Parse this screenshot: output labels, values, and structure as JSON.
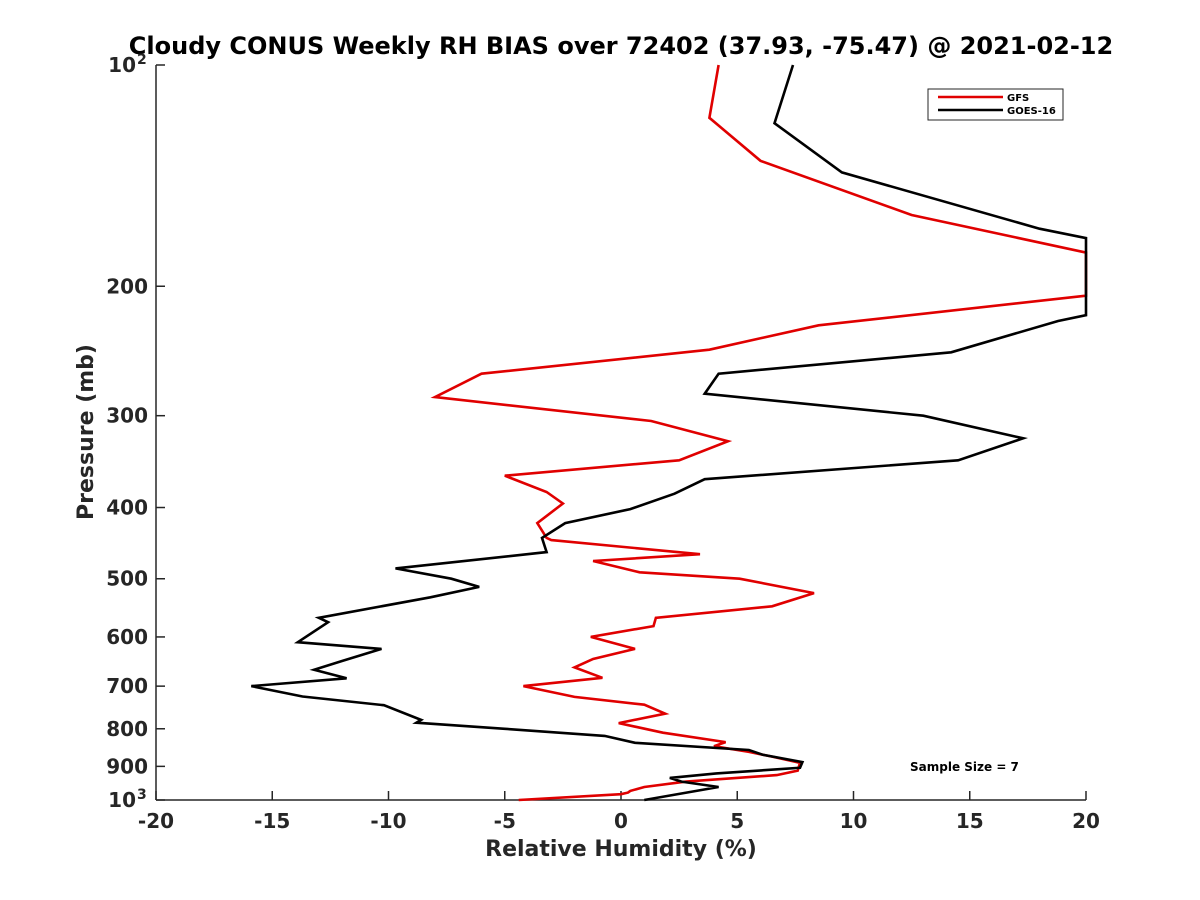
{
  "chart_data": {
    "type": "line",
    "title": "Cloudy CONUS Weekly RH BIAS over 72402 (37.93, -75.47) @ 2021-02-12",
    "xlabel": "Relative Humidity (%)",
    "ylabel": "Pressure (mb)",
    "xlim": [
      -20,
      20
    ],
    "ylim": [
      100,
      1000
    ],
    "yscale": "log",
    "y_reversed": true,
    "grid": false,
    "legend_position": "top-right",
    "x_ticks": [
      "-20",
      "-15",
      "-10",
      "-5",
      "0",
      "5",
      "10",
      "15",
      "20"
    ],
    "y_ticks": [
      {
        "value": 100,
        "label": "10",
        "sup": "2"
      },
      {
        "value": 200,
        "label": "200",
        "sup": ""
      },
      {
        "value": 300,
        "label": "300",
        "sup": ""
      },
      {
        "value": 400,
        "label": "400",
        "sup": ""
      },
      {
        "value": 500,
        "label": "500",
        "sup": ""
      },
      {
        "value": 600,
        "label": "600",
        "sup": ""
      },
      {
        "value": 700,
        "label": "700",
        "sup": ""
      },
      {
        "value": 800,
        "label": "800",
        "sup": ""
      },
      {
        "value": 900,
        "label": "900",
        "sup": ""
      },
      {
        "value": 1000,
        "label": "10",
        "sup": "3"
      }
    ],
    "annotation": "Sample Size = 7",
    "series": [
      {
        "name": "GFS",
        "color": "#e00000",
        "points": [
          [
            4.2,
            100
          ],
          [
            3.8,
            118
          ],
          [
            6.0,
            135
          ],
          [
            12.5,
            160
          ],
          [
            20.0,
            180
          ],
          [
            20.0,
            206
          ],
          [
            8.5,
            226
          ],
          [
            3.8,
            244
          ],
          [
            -6.0,
            263
          ],
          [
            -8.0,
            283
          ],
          [
            1.3,
            305
          ],
          [
            4.6,
            325
          ],
          [
            2.5,
            345
          ],
          [
            -5.0,
            362
          ],
          [
            -3.2,
            381
          ],
          [
            -2.5,
            395
          ],
          [
            -3.6,
            420
          ],
          [
            -3.2,
            440
          ],
          [
            -3.0,
            443
          ],
          [
            3.4,
            463
          ],
          [
            -1.2,
            473
          ],
          [
            0.8,
            490
          ],
          [
            5.1,
            500
          ],
          [
            8.3,
            523
          ],
          [
            6.5,
            545
          ],
          [
            1.5,
            565
          ],
          [
            1.4,
            580
          ],
          [
            -1.3,
            600
          ],
          [
            0.6,
            623
          ],
          [
            -1.2,
            643
          ],
          [
            -2.0,
            660
          ],
          [
            -0.8,
            682
          ],
          [
            -4.2,
            700
          ],
          [
            -2.0,
            724
          ],
          [
            1.0,
            742
          ],
          [
            1.9,
            763
          ],
          [
            -0.1,
            786
          ],
          [
            1.8,
            810
          ],
          [
            4.5,
            834
          ],
          [
            4.0,
            845
          ],
          [
            5.5,
            860
          ],
          [
            6.5,
            873
          ],
          [
            7.7,
            890
          ],
          [
            7.6,
            912
          ],
          [
            6.7,
            925
          ],
          [
            2.8,
            944
          ],
          [
            1.0,
            960
          ],
          [
            0.4,
            972
          ],
          [
            0.3,
            977
          ],
          [
            0.0,
            982
          ],
          [
            -4.4,
            1000
          ]
        ]
      },
      {
        "name": "GOES-16",
        "color": "#000000",
        "points": [
          [
            7.4,
            100
          ],
          [
            6.6,
            120
          ],
          [
            9.5,
            140
          ],
          [
            18.0,
            167
          ],
          [
            20.0,
            172
          ],
          [
            20.0,
            219
          ],
          [
            18.8,
            223
          ],
          [
            14.2,
            246
          ],
          [
            4.2,
            263
          ],
          [
            3.6,
            280
          ],
          [
            13.0,
            300
          ],
          [
            17.3,
            322
          ],
          [
            14.5,
            345
          ],
          [
            3.6,
            366
          ],
          [
            2.3,
            383
          ],
          [
            0.4,
            402
          ],
          [
            -2.4,
            420
          ],
          [
            -3.4,
            440
          ],
          [
            -3.2,
            460
          ],
          [
            -9.7,
            484
          ],
          [
            -7.3,
            500
          ],
          [
            -6.1,
            513
          ],
          [
            -8.2,
            530
          ],
          [
            -13.0,
            565
          ],
          [
            -12.6,
            573
          ],
          [
            -13.9,
            610
          ],
          [
            -10.3,
            623
          ],
          [
            -12.0,
            647
          ],
          [
            -13.2,
            665
          ],
          [
            -11.8,
            683
          ],
          [
            -15.9,
            700
          ],
          [
            -13.7,
            723
          ],
          [
            -10.2,
            743
          ],
          [
            -8.6,
            778
          ],
          [
            -8.8,
            785
          ],
          [
            -5.0,
            800
          ],
          [
            -0.7,
            818
          ],
          [
            0.6,
            836
          ],
          [
            5.5,
            855
          ],
          [
            6.1,
            868
          ],
          [
            7.8,
            888
          ],
          [
            7.7,
            904
          ],
          [
            4.1,
            920
          ],
          [
            2.1,
            933
          ],
          [
            2.6,
            944
          ],
          [
            4.2,
            960
          ],
          [
            1.0,
            1000
          ]
        ]
      }
    ]
  }
}
